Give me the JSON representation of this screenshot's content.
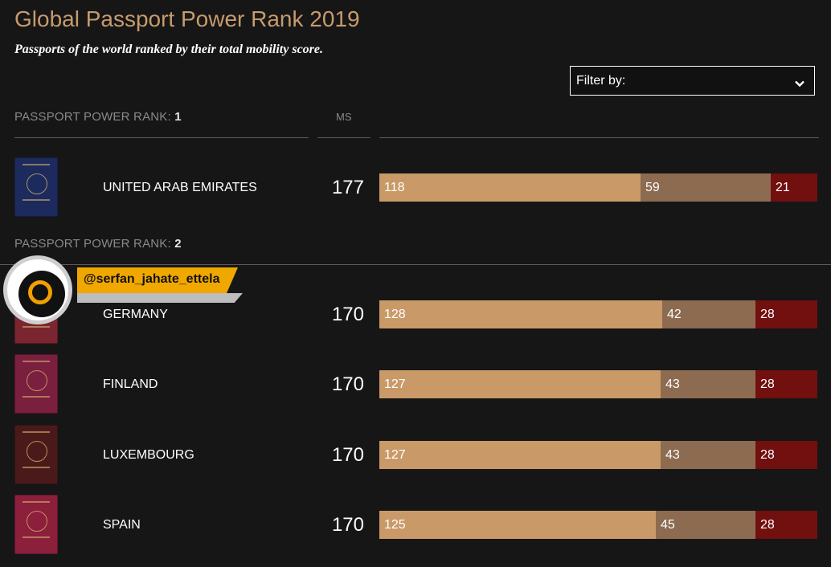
{
  "title": "Global Passport Power Rank 2019",
  "subtitle": "Passports of the world ranked by their total mobility score.",
  "filter": {
    "label": "Filter by:"
  },
  "watermark": "@serfan_jahate_ettela",
  "colors": {
    "visa_free": "#c99a68",
    "visa_on_arrival": "#8c6b50",
    "visa_required": "#720f0f",
    "title": "#c79b6d"
  },
  "ms_header": "MS",
  "ranks": [
    {
      "prefix": "PASSPORT POWER RANK: ",
      "number": "1"
    },
    {
      "prefix": "PASSPORT POWER RANK: ",
      "number": "2"
    }
  ],
  "chart_data": {
    "type": "bar",
    "stacked": true,
    "orientation": "horizontal",
    "categories": [
      "UNITED ARAB EMIRATES",
      "GERMANY",
      "FINLAND",
      "LUXEMBOURG",
      "SPAIN"
    ],
    "mobility_score": [
      "177",
      "170",
      "170",
      "170",
      "170"
    ],
    "series": [
      {
        "values": [
          118,
          128,
          127,
          127,
          125
        ]
      },
      {
        "values": [
          59,
          42,
          43,
          43,
          45
        ]
      },
      {
        "values": [
          21,
          28,
          28,
          28,
          28
        ]
      }
    ]
  },
  "passport_colors": [
    "#1c2a5e",
    "#7a2530",
    "#7a1f3e",
    "#4a1a1a",
    "#8c1f3c"
  ]
}
